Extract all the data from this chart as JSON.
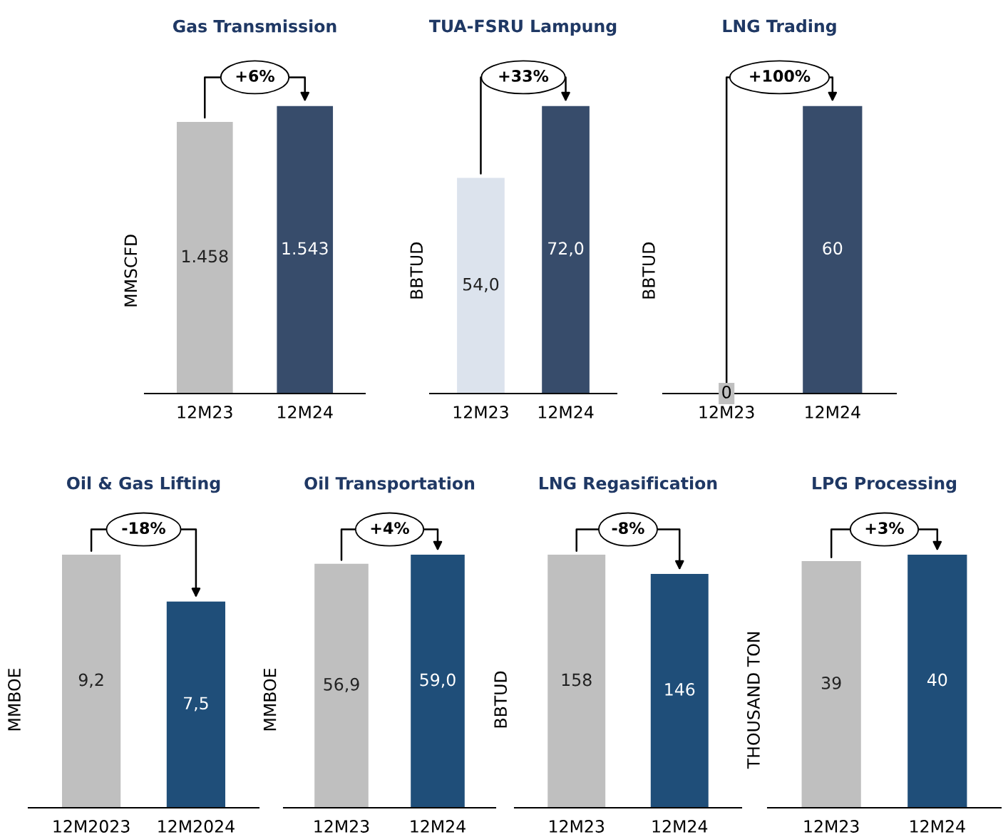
{
  "chart_data": [
    {
      "type": "bar",
      "title": "Gas Transmission",
      "ylabel": "MMSCFD",
      "categories": [
        "12M23",
        "12M24"
      ],
      "values": [
        1458,
        1543
      ],
      "colors": [
        "#bfbfbf",
        "#374c6b"
      ],
      "value_labels": [
        "1.458",
        "1.543"
      ],
      "annotations": [
        "+6%"
      ],
      "tick_labels": "x"
    },
    {
      "type": "bar",
      "title": "TUA-FSRU Lampung",
      "ylabel": "BBTUD",
      "categories": [
        "12M23",
        "12M24"
      ],
      "values": [
        54.0,
        72.0
      ],
      "colors": [
        "#dce3ed",
        "#374c6b"
      ],
      "value_labels": [
        "54,0",
        "72,0"
      ],
      "annotations": [
        "+33%"
      ],
      "tick_labels": "x"
    },
    {
      "type": "bar",
      "title": "LNG Trading",
      "ylabel": "BBTUD",
      "categories": [
        "12M23",
        "12M24"
      ],
      "values": [
        0,
        60
      ],
      "colors": [
        "#bfbfbf",
        "#374c6b"
      ],
      "value_labels": [
        "0",
        "60"
      ],
      "annotations": [
        "+100%"
      ],
      "tick_labels": "x"
    },
    {
      "type": "bar",
      "title": "Oil & Gas Lifting",
      "ylabel": "MMBOE",
      "categories": [
        "12M2023",
        "12M2024"
      ],
      "values": [
        9.2,
        7.5
      ],
      "colors": [
        "#bfbfbf",
        "#1f4e79"
      ],
      "value_labels": [
        "9,2",
        "7,5"
      ],
      "annotations": [
        "-18%"
      ],
      "tick_labels": "x"
    },
    {
      "type": "bar",
      "title": "Oil Transportation",
      "ylabel": "MMBOE",
      "categories": [
        "12M23",
        "12M24"
      ],
      "values": [
        56.9,
        59.0
      ],
      "colors": [
        "#bfbfbf",
        "#1f4e79"
      ],
      "value_labels": [
        "56,9",
        "59,0"
      ],
      "annotations": [
        "+4%"
      ],
      "tick_labels": "x"
    },
    {
      "type": "bar",
      "title": "LNG Regasification",
      "ylabel": "BBTUD",
      "categories": [
        "12M23",
        "12M24"
      ],
      "values": [
        158,
        146
      ],
      "colors": [
        "#bfbfbf",
        "#1f4e79"
      ],
      "value_labels": [
        "158",
        "146"
      ],
      "annotations": [
        "-8%"
      ],
      "tick_labels": "x"
    },
    {
      "type": "bar",
      "title": "LPG Processing",
      "ylabel": "THOUSAND TON",
      "categories": [
        "12M23",
        "12M24"
      ],
      "values": [
        39,
        40
      ],
      "colors": [
        "#bfbfbf",
        "#1f4e79"
      ],
      "value_labels": [
        "39",
        "40"
      ],
      "annotations": [
        "+3%"
      ],
      "tick_labels": "x"
    }
  ]
}
